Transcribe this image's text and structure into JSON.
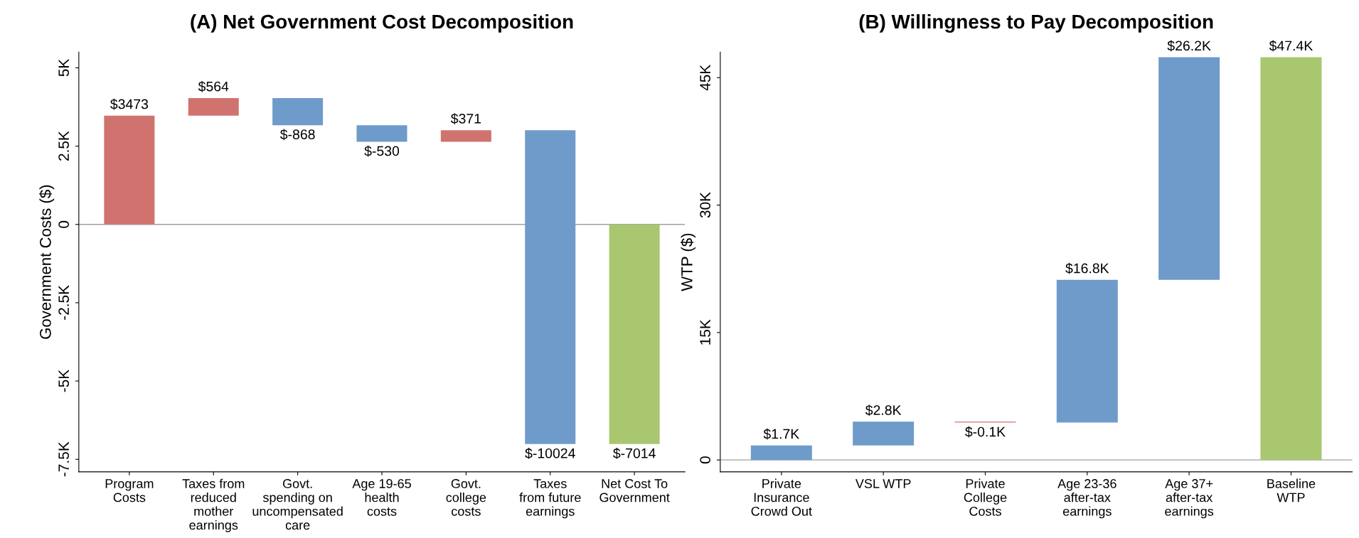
{
  "chart_data": [
    {
      "type": "bar",
      "title": "(A) Net Government Cost Decomposition",
      "ylabel": "Government Costs ($)",
      "categories": [
        "Program\nCosts",
        "Taxes from\nreduced\nmother\nearnings",
        "Govt.\nspending on\nuncompensated\ncare",
        "Age 19-65\nhealth\ncosts",
        "Govt.\ncollege\ncosts",
        "Taxes\nfrom future\nearnings",
        "Net Cost To\nGovernment"
      ],
      "values": [
        3473,
        564,
        -868,
        -530,
        371,
        -10024,
        -7014
      ],
      "base": [
        0,
        3473,
        4037,
        3169,
        2639,
        3010,
        0
      ],
      "colors": [
        "#d0736f",
        "#d0736f",
        "#6f9bcb",
        "#6f9bcb",
        "#d0736f",
        "#6f9bcb",
        "#a9c76f"
      ],
      "value_labels": [
        "$3473",
        "$564",
        "$-868",
        "$-530",
        "$371",
        "$-10024",
        "$-7014"
      ],
      "ylim": [
        -7900,
        5500
      ],
      "yticks": [
        {
          "value": -7500,
          "label": "-7.5K"
        },
        {
          "value": -5000,
          "label": "-5K"
        },
        {
          "value": -2500,
          "label": "-2.5K"
        },
        0,
        {
          "value": 2500,
          "label": "2.5K"
        },
        {
          "value": 5000,
          "label": "5K"
        }
      ],
      "ref_lines": [
        {
          "axis": "y",
          "value": 0,
          "label": null,
          "color": "#a0a0a0"
        }
      ],
      "grid": false,
      "legend": false
    },
    {
      "type": "bar",
      "title": "(B) Willingness to Pay Decomposition",
      "ylabel": "WTP ($)",
      "categories": [
        "Private\nInsurance\nCrowd Out",
        "VSL WTP",
        "Private\nCollege\nCosts",
        "Age 23-36\nafter-tax\nearnings",
        "Age 37+\nafter-tax\nearnings",
        "Baseline\nWTP"
      ],
      "values": [
        1700,
        2800,
        -100,
        16800,
        26200,
        47400
      ],
      "base": [
        0,
        1700,
        4500,
        4400,
        21200,
        0
      ],
      "colors": [
        "#6f9bcb",
        "#6f9bcb",
        "#d0736f",
        "#6f9bcb",
        "#6f9bcb",
        "#a9c76f"
      ],
      "value_labels": [
        "$1.7K",
        "$2.8K",
        "$-0.1K",
        "$16.8K",
        "$26.2K",
        "$47.4K"
      ],
      "ylim": [
        -1400,
        48000
      ],
      "yticks": [
        0,
        {
          "value": 15000,
          "label": "15K"
        },
        {
          "value": 30000,
          "label": "30K"
        },
        {
          "value": 45000,
          "label": "45K"
        }
      ],
      "ref_lines": [
        {
          "axis": "y",
          "value": 0,
          "label": null,
          "color": "#a0a0a0"
        }
      ],
      "grid": false,
      "legend": false
    }
  ]
}
